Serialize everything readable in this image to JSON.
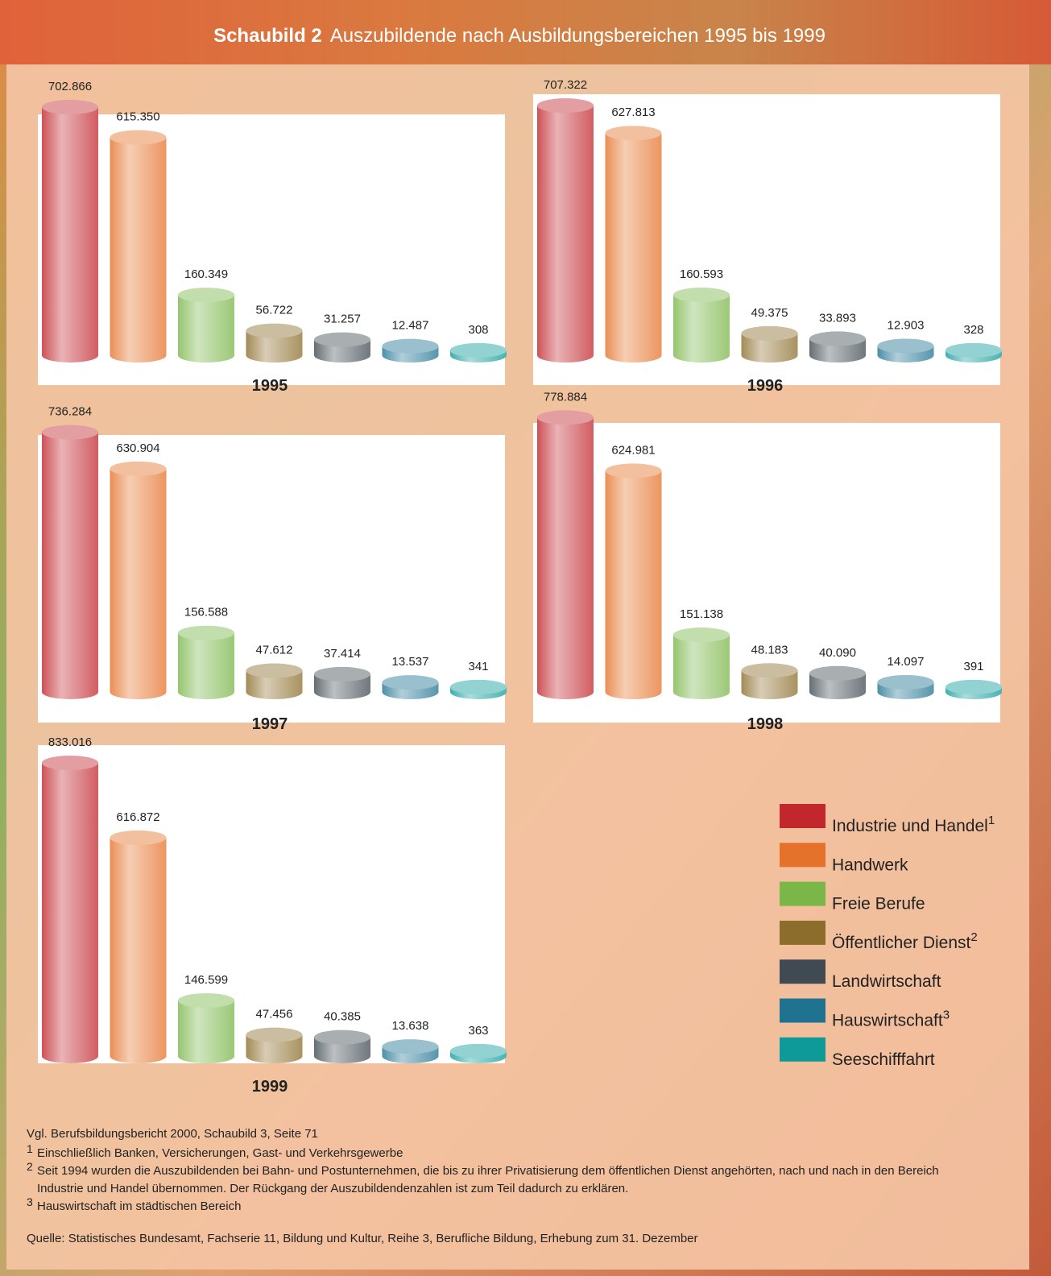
{
  "title_label": "Schaubild 2",
  "title": "Auszubildende nach Ausbildungsbereichen 1995 bis 1999",
  "legend": [
    {
      "name": "Industrie und Handel",
      "note": "1",
      "color": "#c1272d"
    },
    {
      "name": "Handwerk",
      "color": "#e5722a"
    },
    {
      "name": "Freie Berufe",
      "color": "#7ab648"
    },
    {
      "name": "Öffentlicher Dienst",
      "note": "2",
      "color": "#8c6d2c"
    },
    {
      "name": "Landwirtschaft",
      "color": "#3f4a52"
    },
    {
      "name": "Hauswirtschaft",
      "note": "3",
      "color": "#1f7391"
    },
    {
      "name": "Seeschifffahrt",
      "color": "#0f9a9a"
    }
  ],
  "chart_data": [
    {
      "type": "bar",
      "title": "1995",
      "values": [
        702866,
        615350,
        160349,
        56722,
        31257,
        12487,
        308
      ],
      "value_labels": [
        "702.866",
        "615.350",
        "160.349",
        "56.722",
        "31.257",
        "12.487",
        "308"
      ]
    },
    {
      "type": "bar",
      "title": "1996",
      "values": [
        707322,
        627813,
        160593,
        49375,
        33893,
        12903,
        328
      ],
      "value_labels": [
        "707.322",
        "627.813",
        "160.593",
        "49.375",
        "33.893",
        "12.903",
        "328"
      ]
    },
    {
      "type": "bar",
      "title": "1997",
      "values": [
        736284,
        630904,
        156588,
        47612,
        37414,
        13537,
        341
      ],
      "value_labels": [
        "736.284",
        "630.904",
        "156.588",
        "47.612",
        "37.414",
        "13.537",
        "341"
      ]
    },
    {
      "type": "bar",
      "title": "1998",
      "values": [
        778884,
        624981,
        151138,
        48183,
        40090,
        14097,
        391
      ],
      "value_labels": [
        "778.884",
        "624.981",
        "151.138",
        "48.183",
        "40.090",
        "14.097",
        "391"
      ]
    },
    {
      "type": "bar",
      "title": "1999",
      "values": [
        833016,
        616872,
        146599,
        47456,
        40385,
        13638,
        363
      ],
      "value_labels": [
        "833.016",
        "616.872",
        "146.599",
        "47.456",
        "40.385",
        "13.638",
        "363"
      ]
    }
  ],
  "notes": {
    "source_ref": "Vgl. Berufsbildungsbericht 2000, Schaubild 3, Seite 71",
    "footnotes": [
      {
        "mark": "1",
        "lines": [
          "Einschließlich Banken, Versicherungen, Gast- und Verkehrsgewerbe"
        ]
      },
      {
        "mark": "2",
        "lines": [
          "Seit 1994 wurden die Auszubildenden bei Bahn- und Postunternehmen, die bis zu ihrer Privatisierung dem öffentlichen Dienst angehörten, nach und nach in den Bereich",
          "Industrie und Handel übernommen. Der Rückgang der Auszubildendenzahlen ist zum Teil dadurch zu erklären."
        ]
      },
      {
        "mark": "3",
        "lines": [
          "Hauswirtschaft im städtischen Bereich"
        ]
      }
    ],
    "source": "Quelle: Statistisches Bundesamt, Fachserie 11, Bildung und Kultur, Reihe 3, Berufliche Bildung, Erhebung zum 31. Dezember"
  }
}
